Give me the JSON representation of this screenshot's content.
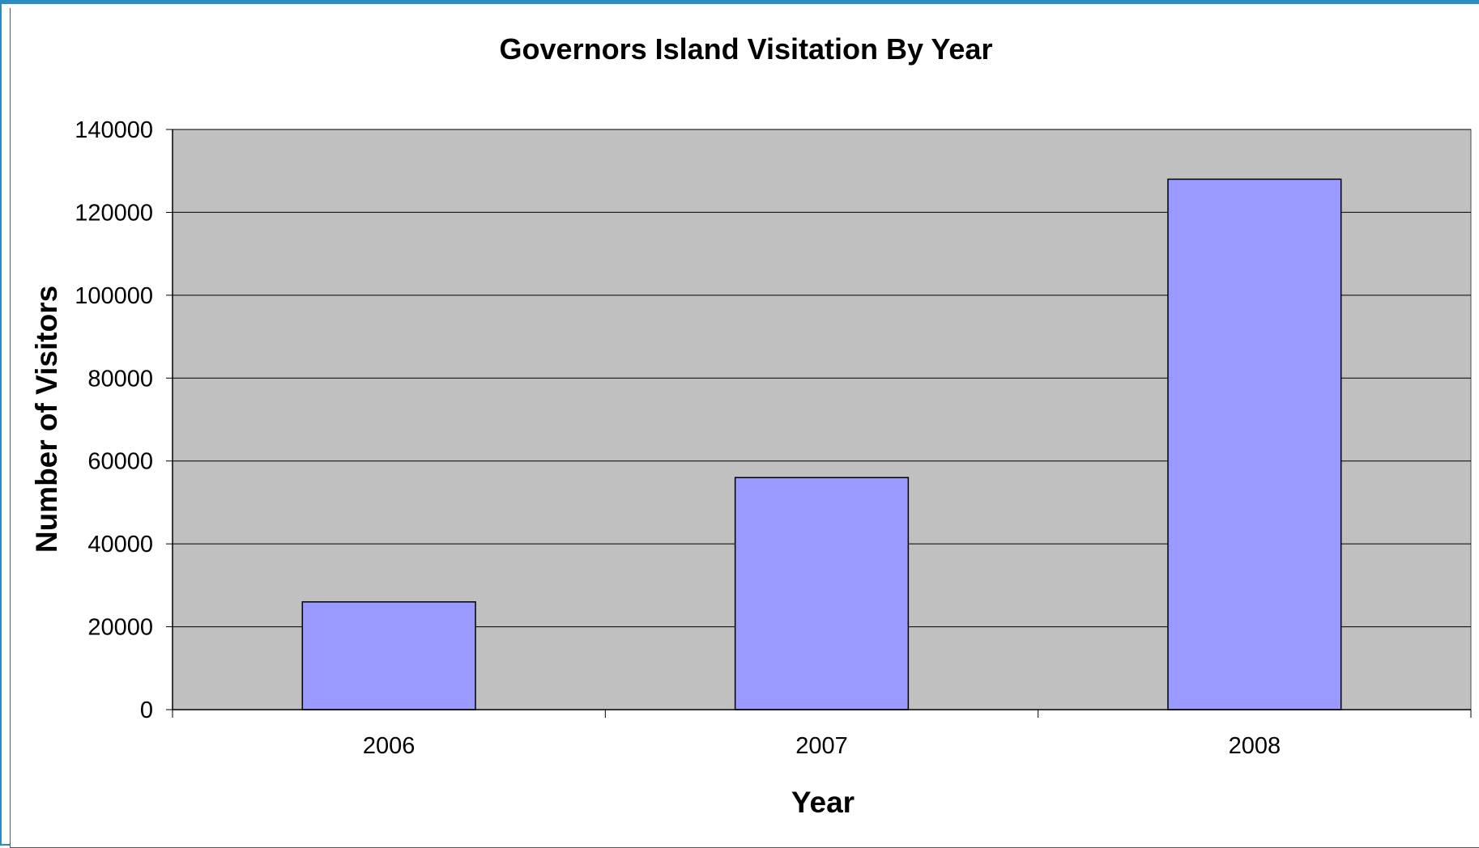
{
  "chart_data": {
    "type": "bar",
    "title": "Governors Island Visitation By Year",
    "xlabel": "Year",
    "ylabel": "Number of Visitors",
    "categories": [
      "2006",
      "2007",
      "2008"
    ],
    "values": [
      26000,
      56000,
      128000
    ],
    "ylim": [
      0,
      140000
    ],
    "yticks": [
      "0",
      "20000",
      "40000",
      "60000",
      "80000",
      "100000",
      "120000",
      "140000"
    ],
    "grid": true,
    "legend": "none",
    "colors": {
      "bar_fill": "#9999ff",
      "bar_stroke": "#000000",
      "plot_background": "#c0c0c0",
      "gridline": "#000000"
    }
  }
}
